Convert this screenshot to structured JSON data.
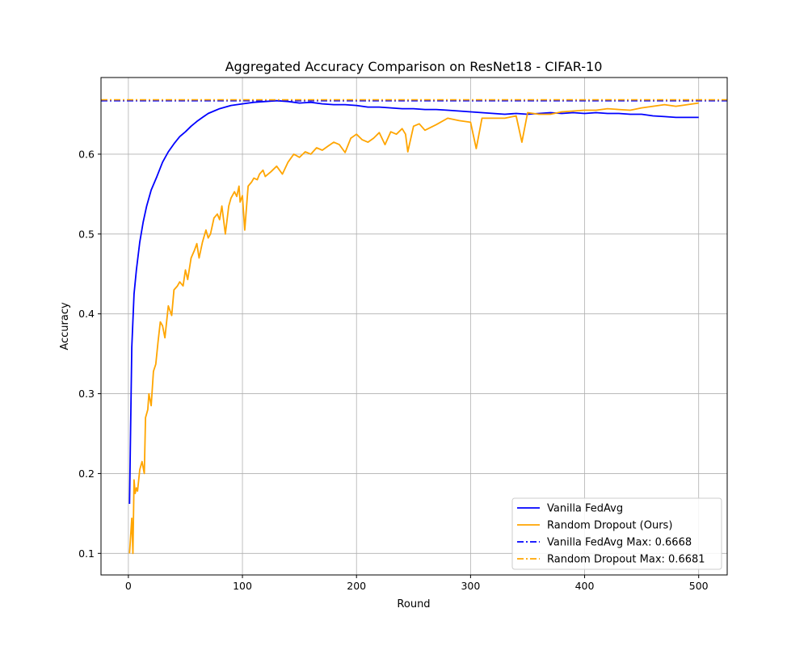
{
  "chart_data": {
    "type": "line",
    "title": "Aggregated Accuracy Comparison on ResNet18 - CIFAR-10",
    "xlabel": "Round",
    "ylabel": "Accuracy",
    "xlim": [
      -24,
      525
    ],
    "ylim": [
      0.073,
      0.696
    ],
    "xticks": [
      0,
      100,
      200,
      300,
      400,
      500
    ],
    "yticks": [
      0.1,
      0.2,
      0.3,
      0.4,
      0.5,
      0.6
    ],
    "xtick_labels": [
      "0",
      "100",
      "200",
      "300",
      "400",
      "500"
    ],
    "ytick_labels": [
      "0.1",
      "0.2",
      "0.3",
      "0.4",
      "0.5",
      "0.6"
    ],
    "grid": true,
    "legend_position": "lower-right",
    "series": [
      {
        "name": "Vanilla FedAvg",
        "color": "#0000ff",
        "style": "solid",
        "x": [
          1,
          3,
          5,
          7,
          10,
          13,
          16,
          20,
          25,
          30,
          35,
          40,
          45,
          50,
          55,
          60,
          65,
          70,
          75,
          80,
          90,
          100,
          110,
          120,
          130,
          140,
          150,
          160,
          170,
          180,
          190,
          200,
          210,
          220,
          230,
          240,
          250,
          260,
          270,
          280,
          290,
          300,
          310,
          320,
          330,
          340,
          350,
          360,
          370,
          380,
          390,
          400,
          410,
          420,
          430,
          440,
          450,
          460,
          470,
          480,
          490,
          500
        ],
        "y": [
          0.162,
          0.358,
          0.425,
          0.455,
          0.49,
          0.515,
          0.535,
          0.555,
          0.572,
          0.59,
          0.603,
          0.613,
          0.622,
          0.628,
          0.635,
          0.641,
          0.646,
          0.651,
          0.654,
          0.657,
          0.661,
          0.663,
          0.665,
          0.666,
          0.667,
          0.666,
          0.664,
          0.665,
          0.663,
          0.662,
          0.662,
          0.661,
          0.659,
          0.659,
          0.658,
          0.657,
          0.657,
          0.656,
          0.656,
          0.655,
          0.654,
          0.653,
          0.652,
          0.651,
          0.65,
          0.651,
          0.65,
          0.651,
          0.652,
          0.651,
          0.652,
          0.651,
          0.652,
          0.651,
          0.651,
          0.65,
          0.65,
          0.648,
          0.647,
          0.646,
          0.646,
          0.646
        ]
      },
      {
        "name": "Random Dropout (Ours)",
        "color": "#ffa500",
        "style": "solid",
        "x": [
          1,
          3,
          4,
          5,
          6,
          7,
          8,
          10,
          12,
          14,
          15,
          17,
          18,
          20,
          22,
          24,
          26,
          28,
          30,
          32,
          35,
          38,
          40,
          43,
          45,
          48,
          50,
          52,
          55,
          58,
          60,
          62,
          65,
          68,
          70,
          72,
          75,
          78,
          80,
          82,
          85,
          88,
          90,
          93,
          95,
          97,
          98,
          100,
          102,
          105,
          108,
          110,
          113,
          115,
          118,
          120,
          125,
          130,
          135,
          140,
          145,
          150,
          155,
          160,
          165,
          170,
          175,
          180,
          185,
          190,
          195,
          200,
          205,
          210,
          215,
          220,
          225,
          230,
          235,
          240,
          243,
          245,
          250,
          255,
          260,
          270,
          280,
          290,
          300,
          305,
          310,
          320,
          330,
          340,
          345,
          350,
          360,
          370,
          380,
          390,
          400,
          410,
          420,
          430,
          440,
          450,
          460,
          470,
          480,
          490,
          500
        ],
        "y": [
          0.1,
          0.144,
          0.1,
          0.192,
          0.175,
          0.182,
          0.178,
          0.205,
          0.215,
          0.2,
          0.27,
          0.28,
          0.3,
          0.285,
          0.328,
          0.337,
          0.365,
          0.39,
          0.385,
          0.37,
          0.41,
          0.398,
          0.43,
          0.435,
          0.44,
          0.435,
          0.455,
          0.443,
          0.47,
          0.48,
          0.488,
          0.47,
          0.49,
          0.505,
          0.495,
          0.5,
          0.52,
          0.525,
          0.518,
          0.535,
          0.5,
          0.535,
          0.545,
          0.553,
          0.547,
          0.56,
          0.54,
          0.548,
          0.505,
          0.56,
          0.565,
          0.57,
          0.568,
          0.575,
          0.58,
          0.572,
          0.578,
          0.585,
          0.575,
          0.59,
          0.6,
          0.596,
          0.603,
          0.6,
          0.608,
          0.605,
          0.61,
          0.615,
          0.612,
          0.602,
          0.62,
          0.625,
          0.618,
          0.615,
          0.62,
          0.627,
          0.612,
          0.628,
          0.625,
          0.632,
          0.625,
          0.603,
          0.635,
          0.638,
          0.63,
          0.637,
          0.645,
          0.642,
          0.64,
          0.607,
          0.645,
          0.645,
          0.645,
          0.648,
          0.615,
          0.652,
          0.65,
          0.65,
          0.653,
          0.654,
          0.655,
          0.655,
          0.657,
          0.656,
          0.655,
          0.658,
          0.66,
          0.662,
          0.66,
          0.662,
          0.664
        ]
      }
    ],
    "reference_lines": [
      {
        "name": "Vanilla FedAvg Max: 0.6668",
        "value": 0.6668,
        "color": "#0000ff",
        "style": "dashdot"
      },
      {
        "name": "Random Dropout Max: 0.6681",
        "value": 0.6681,
        "color": "#ffa500",
        "style": "dashdot"
      }
    ]
  }
}
